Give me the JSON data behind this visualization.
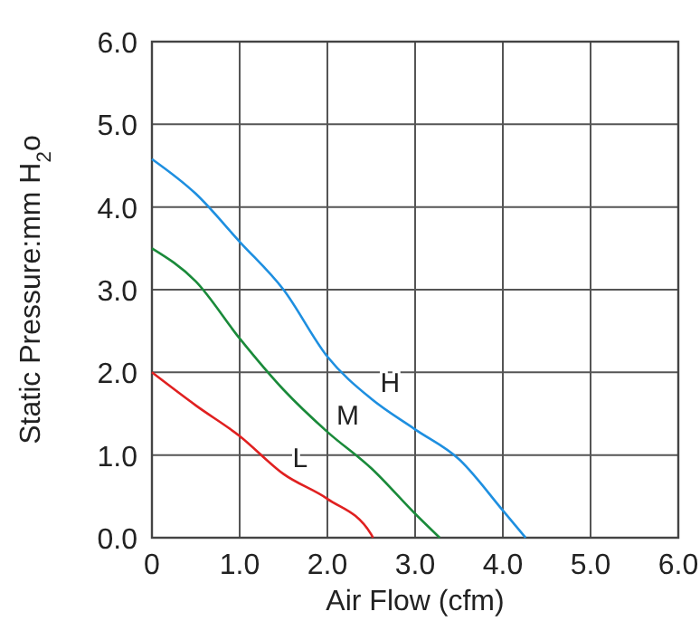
{
  "chart_data": {
    "type": "line",
    "xlabel": "Air Flow (cfm)",
    "ylabel": "Static Pressure:mm H$_{2}$o",
    "xlim": [
      0,
      6
    ],
    "ylim": [
      0,
      6
    ],
    "xticks": [
      {
        "value": 0,
        "label": "0"
      },
      {
        "value": 1,
        "label": "1.0"
      },
      {
        "value": 2,
        "label": "2.0"
      },
      {
        "value": 3,
        "label": "3.0"
      },
      {
        "value": 4,
        "label": "4.0"
      },
      {
        "value": 5,
        "label": "5.0"
      },
      {
        "value": 6,
        "label": "6.0"
      }
    ],
    "yticks": [
      {
        "value": 0,
        "label": "0.0"
      },
      {
        "value": 1,
        "label": "1.0"
      },
      {
        "value": 2,
        "label": "2.0"
      },
      {
        "value": 3,
        "label": "3.0"
      },
      {
        "value": 4,
        "label": "4.0"
      },
      {
        "value": 5,
        "label": "5.0"
      },
      {
        "value": 6,
        "label": "6.0"
      }
    ],
    "grid": true,
    "marker": "none",
    "line_style": "solid",
    "series": [
      {
        "name": "H",
        "color": "#1e8fe0",
        "x": [
          0,
          0.5,
          1,
          1.5,
          2,
          2.5,
          3,
          3.5,
          4,
          4.26
        ],
        "values": [
          4.58,
          4.16,
          3.58,
          3.0,
          2.19,
          1.68,
          1.31,
          0.95,
          0.33,
          0
        ]
      },
      {
        "name": "M",
        "color": "#1a8a3a",
        "x": [
          0,
          0.5,
          1,
          1.5,
          2,
          2.5,
          3,
          3.28
        ],
        "values": [
          3.5,
          3.1,
          2.41,
          1.79,
          1.28,
          0.84,
          0.29,
          0
        ]
      },
      {
        "name": "L",
        "color": "#e02020",
        "x": [
          0,
          0.5,
          1,
          1.5,
          2,
          2.5,
          2.52
        ],
        "values": [
          2.0,
          1.6,
          1.23,
          0.77,
          0.47,
          0.04,
          0
        ]
      }
    ]
  }
}
